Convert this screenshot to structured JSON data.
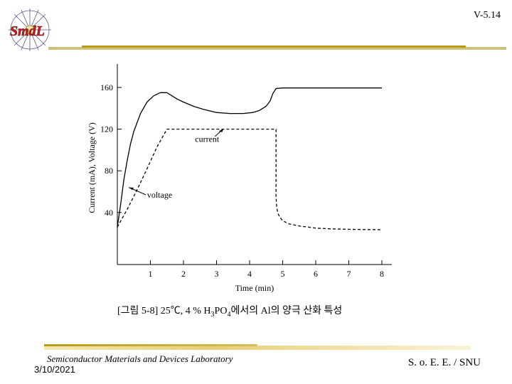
{
  "slide": {
    "id": "V-5.14"
  },
  "footer": {
    "lab": "Semiconductor Materials and Devices Laboratory",
    "date": "3/10/2021",
    "org": "S. o. E. E. / SNU"
  },
  "caption": {
    "pre": "[그림 5-8]  25℃, 4 % H",
    "sub1": "3",
    "mid": "PO",
    "sub2": "4",
    "post": "에서의 Al의 양극 산화 특성"
  },
  "logo": {
    "text": "SmdL"
  },
  "chart_data": {
    "type": "line",
    "title": "",
    "xlabel": "Time (min)",
    "ylabel": "Current (mA), Voltage (V)",
    "xlim": [
      0,
      8.3
    ],
    "ylim": [
      20,
      180
    ],
    "x_ticks": [
      1,
      2,
      3,
      4,
      5,
      6,
      7,
      8
    ],
    "y_ticks": [
      40,
      80,
      120,
      160
    ],
    "grid": false,
    "annotations": [
      {
        "text": "current",
        "points_to": "current"
      },
      {
        "text": "voltage",
        "points_to": "voltage"
      }
    ],
    "series": [
      {
        "name": "current",
        "style": "solid",
        "x": [
          0.0,
          0.1,
          0.2,
          0.3,
          0.4,
          0.5,
          0.7,
          0.9,
          1.1,
          1.3,
          1.5,
          1.65,
          1.8,
          2.0,
          2.3,
          2.6,
          3.0,
          3.4,
          3.8,
          4.1,
          4.3,
          4.5,
          4.62,
          4.7,
          4.8,
          5.0,
          5.5,
          6.0,
          7.0,
          8.0
        ],
        "y": [
          26,
          48,
          72,
          90,
          106,
          118,
          135,
          146,
          152,
          155,
          155,
          152,
          149,
          146,
          142,
          139,
          136,
          135,
          135,
          136,
          138,
          142,
          147,
          154,
          159,
          159.5,
          159.5,
          159.5,
          159.5,
          159.5
        ]
      },
      {
        "name": "voltage",
        "style": "dashed",
        "x": [
          0.0,
          0.3,
          0.6,
          0.9,
          1.2,
          1.5,
          2.0,
          3.0,
          4.0,
          4.6,
          4.8,
          4.8,
          4.82,
          4.85,
          4.9,
          5.0,
          5.2,
          5.5,
          6.0,
          6.5,
          7.0,
          7.5,
          8.0
        ],
        "y": [
          26,
          43,
          62,
          82,
          103,
          120,
          120,
          120,
          120,
          120,
          120,
          55,
          45,
          40,
          36,
          32,
          29,
          27,
          25,
          24.2,
          23.8,
          23.6,
          23.5
        ]
      }
    ]
  }
}
